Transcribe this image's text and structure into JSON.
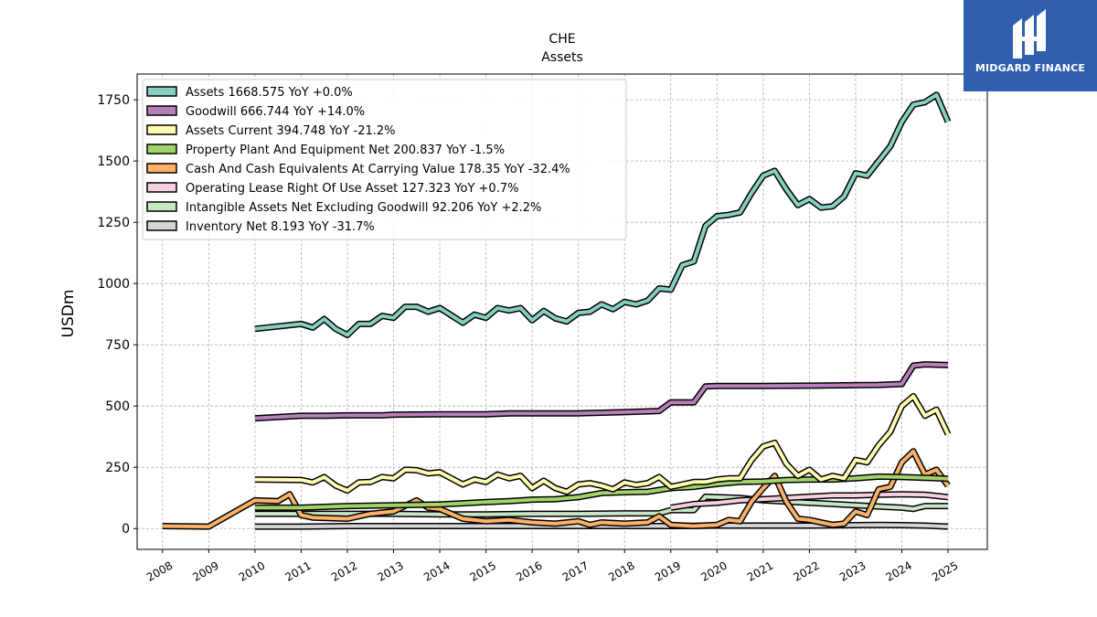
{
  "brand": {
    "name": "MIDGARD FINANCE"
  },
  "chart_data": {
    "type": "line",
    "title": "CHE",
    "subtitle": "Assets",
    "xlabel": "",
    "ylabel": "USDm",
    "xlim": [
      2007.45,
      2025.85
    ],
    "ylim": [
      -85,
      1855
    ],
    "x_ticks": [
      "2008",
      "2009",
      "2010",
      "2011",
      "2012",
      "2013",
      "2014",
      "2015",
      "2016",
      "2017",
      "2018",
      "2019",
      "2020",
      "2021",
      "2022",
      "2023",
      "2024",
      "2025"
    ],
    "y_ticks": [
      0,
      250,
      500,
      750,
      1000,
      1250,
      1500,
      1750
    ],
    "y_tick_labels": [
      "0",
      "250",
      "500",
      "750",
      "1000",
      "1250",
      "1500",
      "1750"
    ],
    "grid": true,
    "legend_position": "top-left",
    "series": [
      {
        "name": "Assets",
        "legend": "Assets  1668.575 YoY +0.0%",
        "color": "#86cfbf",
        "points": [
          [
            2010.0,
            815
          ],
          [
            2011.0,
            835
          ],
          [
            2011.25,
            820
          ],
          [
            2011.5,
            855
          ],
          [
            2011.75,
            815
          ],
          [
            2012.0,
            790
          ],
          [
            2012.25,
            835
          ],
          [
            2012.5,
            835
          ],
          [
            2012.75,
            868
          ],
          [
            2013.0,
            860
          ],
          [
            2013.25,
            905
          ],
          [
            2013.5,
            905
          ],
          [
            2013.75,
            885
          ],
          [
            2014.0,
            900
          ],
          [
            2014.25,
            870
          ],
          [
            2014.5,
            840
          ],
          [
            2014.75,
            873
          ],
          [
            2015.0,
            860
          ],
          [
            2015.25,
            900
          ],
          [
            2015.5,
            890
          ],
          [
            2015.75,
            900
          ],
          [
            2016.0,
            850
          ],
          [
            2016.25,
            888
          ],
          [
            2016.5,
            858
          ],
          [
            2016.75,
            845
          ],
          [
            2017.0,
            880
          ],
          [
            2017.25,
            885
          ],
          [
            2017.5,
            915
          ],
          [
            2017.75,
            895
          ],
          [
            2018.0,
            925
          ],
          [
            2018.25,
            915
          ],
          [
            2018.5,
            930
          ],
          [
            2018.75,
            980
          ],
          [
            2019.0,
            975
          ],
          [
            2019.25,
            1075
          ],
          [
            2019.5,
            1090
          ],
          [
            2019.75,
            1235
          ],
          [
            2020.0,
            1275
          ],
          [
            2020.25,
            1280
          ],
          [
            2020.5,
            1290
          ],
          [
            2020.75,
            1370
          ],
          [
            2021.0,
            1440
          ],
          [
            2021.25,
            1460
          ],
          [
            2021.5,
            1385
          ],
          [
            2021.75,
            1320
          ],
          [
            2022.0,
            1345
          ],
          [
            2022.25,
            1310
          ],
          [
            2022.5,
            1315
          ],
          [
            2022.75,
            1355
          ],
          [
            2023.0,
            1450
          ],
          [
            2023.25,
            1440
          ],
          [
            2023.5,
            1500
          ],
          [
            2023.75,
            1560
          ],
          [
            2024.0,
            1660
          ],
          [
            2024.25,
            1730
          ],
          [
            2024.5,
            1740
          ],
          [
            2024.75,
            1770
          ],
          [
            2025.0,
            1660
          ]
        ]
      },
      {
        "name": "Goodwill",
        "legend": "Goodwill  666.744 YoY +14.0%",
        "color": "#b57fba",
        "points": [
          [
            2010.0,
            450
          ],
          [
            2011.0,
            460
          ],
          [
            2011.5,
            460
          ],
          [
            2012.0,
            462
          ],
          [
            2012.75,
            462
          ],
          [
            2013.0,
            465
          ],
          [
            2014.0,
            466
          ],
          [
            2015.0,
            466
          ],
          [
            2015.5,
            470
          ],
          [
            2016.0,
            470
          ],
          [
            2017.0,
            470
          ],
          [
            2018.0,
            475
          ],
          [
            2018.75,
            480
          ],
          [
            2019.0,
            515
          ],
          [
            2019.5,
            515
          ],
          [
            2019.75,
            580
          ],
          [
            2020.0,
            582
          ],
          [
            2021.0,
            582
          ],
          [
            2022.0,
            583
          ],
          [
            2023.0,
            585
          ],
          [
            2023.5,
            586
          ],
          [
            2024.0,
            590
          ],
          [
            2024.25,
            665
          ],
          [
            2024.5,
            670
          ],
          [
            2025.0,
            667
          ]
        ]
      },
      {
        "name": "Assets Current",
        "legend": "Assets Current  394.748 YoY -21.2%",
        "color": "#fdfab1",
        "points": [
          [
            2010.0,
            200
          ],
          [
            2011.0,
            198
          ],
          [
            2011.25,
            188
          ],
          [
            2011.5,
            210
          ],
          [
            2011.75,
            175
          ],
          [
            2012.0,
            155
          ],
          [
            2012.25,
            188
          ],
          [
            2012.5,
            190
          ],
          [
            2012.75,
            210
          ],
          [
            2013.0,
            205
          ],
          [
            2013.25,
            240
          ],
          [
            2013.5,
            238
          ],
          [
            2013.75,
            225
          ],
          [
            2014.0,
            230
          ],
          [
            2014.25,
            205
          ],
          [
            2014.5,
            180
          ],
          [
            2014.75,
            200
          ],
          [
            2015.0,
            190
          ],
          [
            2015.25,
            220
          ],
          [
            2015.5,
            205
          ],
          [
            2015.75,
            215
          ],
          [
            2016.0,
            165
          ],
          [
            2016.25,
            195
          ],
          [
            2016.5,
            165
          ],
          [
            2016.75,
            150
          ],
          [
            2017.0,
            180
          ],
          [
            2017.25,
            185
          ],
          [
            2017.5,
            175
          ],
          [
            2017.75,
            160
          ],
          [
            2018.0,
            188
          ],
          [
            2018.25,
            178
          ],
          [
            2018.5,
            185
          ],
          [
            2018.75,
            210
          ],
          [
            2019.0,
            170
          ],
          [
            2019.25,
            180
          ],
          [
            2019.5,
            190
          ],
          [
            2019.75,
            190
          ],
          [
            2020.0,
            200
          ],
          [
            2020.25,
            205
          ],
          [
            2020.5,
            205
          ],
          [
            2020.75,
            280
          ],
          [
            2021.0,
            335
          ],
          [
            2021.25,
            350
          ],
          [
            2021.5,
            265
          ],
          [
            2021.75,
            215
          ],
          [
            2022.0,
            240
          ],
          [
            2022.25,
            200
          ],
          [
            2022.5,
            215
          ],
          [
            2022.75,
            205
          ],
          [
            2023.0,
            280
          ],
          [
            2023.25,
            270
          ],
          [
            2023.5,
            340
          ],
          [
            2023.75,
            395
          ],
          [
            2024.0,
            500
          ],
          [
            2024.25,
            540
          ],
          [
            2024.5,
            460
          ],
          [
            2024.75,
            485
          ],
          [
            2025.0,
            385
          ]
        ]
      },
      {
        "name": "Property Plant And Equipment Net",
        "legend": "Property Plant And Equipment Net  200.837 YoY -1.5%",
        "color": "#a2d36b",
        "points": [
          [
            2010.0,
            85
          ],
          [
            2011.0,
            85
          ],
          [
            2012.0,
            92
          ],
          [
            2013.0,
            95
          ],
          [
            2014.0,
            98
          ],
          [
            2015.0,
            108
          ],
          [
            2015.5,
            112
          ],
          [
            2016.0,
            118
          ],
          [
            2016.5,
            120
          ],
          [
            2017.0,
            128
          ],
          [
            2017.5,
            145
          ],
          [
            2018.0,
            148
          ],
          [
            2018.5,
            150
          ],
          [
            2019.0,
            165
          ],
          [
            2019.5,
            170
          ],
          [
            2020.0,
            182
          ],
          [
            2020.5,
            190
          ],
          [
            2021.0,
            192
          ],
          [
            2021.5,
            198
          ],
          [
            2022.0,
            200
          ],
          [
            2022.5,
            200
          ],
          [
            2023.0,
            205
          ],
          [
            2023.5,
            212
          ],
          [
            2024.0,
            210
          ],
          [
            2024.5,
            207
          ],
          [
            2025.0,
            203
          ]
        ]
      },
      {
        "name": "Cash And Cash Equivalents At Carrying Value",
        "legend": "Cash And Cash Equivalents At Carrying Value  178.35 YoY -32.4%",
        "color": "#fcb168",
        "points": [
          [
            2008.0,
            10
          ],
          [
            2009.0,
            8
          ],
          [
            2010.0,
            115
          ],
          [
            2010.5,
            112
          ],
          [
            2010.75,
            140
          ],
          [
            2011.0,
            55
          ],
          [
            2011.25,
            45
          ],
          [
            2012.0,
            40
          ],
          [
            2012.5,
            60
          ],
          [
            2013.0,
            70
          ],
          [
            2013.5,
            115
          ],
          [
            2013.75,
            85
          ],
          [
            2014.0,
            80
          ],
          [
            2014.5,
            40
          ],
          [
            2015.0,
            30
          ],
          [
            2015.5,
            35
          ],
          [
            2016.0,
            25
          ],
          [
            2016.5,
            20
          ],
          [
            2017.0,
            30
          ],
          [
            2017.25,
            15
          ],
          [
            2017.5,
            25
          ],
          [
            2018.0,
            20
          ],
          [
            2018.5,
            25
          ],
          [
            2018.75,
            50
          ],
          [
            2019.0,
            15
          ],
          [
            2019.5,
            10
          ],
          [
            2020.0,
            15
          ],
          [
            2020.25,
            35
          ],
          [
            2020.5,
            30
          ],
          [
            2020.75,
            110
          ],
          [
            2021.0,
            165
          ],
          [
            2021.25,
            215
          ],
          [
            2021.5,
            110
          ],
          [
            2021.75,
            40
          ],
          [
            2022.0,
            35
          ],
          [
            2022.5,
            15
          ],
          [
            2022.75,
            20
          ],
          [
            2023.0,
            70
          ],
          [
            2023.25,
            55
          ],
          [
            2023.5,
            160
          ],
          [
            2023.75,
            170
          ],
          [
            2024.0,
            270
          ],
          [
            2024.25,
            315
          ],
          [
            2024.5,
            220
          ],
          [
            2024.75,
            240
          ],
          [
            2025.0,
            175
          ]
        ]
      },
      {
        "name": "Operating Lease Right Of Use Asset",
        "legend": "Operating Lease Right Of Use Asset  127.323 YoY +0.7%",
        "color": "#f6cfe0",
        "points": [
          [
            2019.0,
            85
          ],
          [
            2019.5,
            100
          ],
          [
            2020.0,
            105
          ],
          [
            2020.5,
            115
          ],
          [
            2021.0,
            120
          ],
          [
            2021.5,
            125
          ],
          [
            2022.0,
            130
          ],
          [
            2022.5,
            135
          ],
          [
            2023.0,
            135
          ],
          [
            2023.5,
            138
          ],
          [
            2024.0,
            140
          ],
          [
            2024.5,
            138
          ],
          [
            2025.0,
            128
          ]
        ]
      },
      {
        "name": "Intangible Assets Net Excluding Goodwill",
        "legend": "Intangible Assets Net Excluding Goodwill  92.206 YoY +2.2%",
        "color": "#c8e6c3",
        "points": [
          [
            2010.0,
            60
          ],
          [
            2011.0,
            60
          ],
          [
            2012.0,
            60
          ],
          [
            2013.0,
            60
          ],
          [
            2014.0,
            58
          ],
          [
            2015.0,
            58
          ],
          [
            2016.0,
            60
          ],
          [
            2017.0,
            60
          ],
          [
            2018.0,
            62
          ],
          [
            2018.75,
            62
          ],
          [
            2019.0,
            75
          ],
          [
            2019.5,
            75
          ],
          [
            2019.75,
            130
          ],
          [
            2020.5,
            125
          ],
          [
            2021.0,
            115
          ],
          [
            2021.5,
            110
          ],
          [
            2022.0,
            105
          ],
          [
            2022.5,
            100
          ],
          [
            2023.0,
            95
          ],
          [
            2023.5,
            90
          ],
          [
            2024.0,
            85
          ],
          [
            2024.25,
            80
          ],
          [
            2024.5,
            92
          ],
          [
            2025.0,
            92
          ]
        ]
      },
      {
        "name": "Inventory Net",
        "legend": "Inventory Net  8.193 YoY -31.7%",
        "color": "#d4d4d4",
        "points": [
          [
            2010.0,
            8
          ],
          [
            2011.0,
            8
          ],
          [
            2012.0,
            10
          ],
          [
            2013.0,
            10
          ],
          [
            2014.0,
            10
          ],
          [
            2015.0,
            10
          ],
          [
            2016.0,
            10
          ],
          [
            2017.0,
            10
          ],
          [
            2018.0,
            10
          ],
          [
            2019.0,
            10
          ],
          [
            2020.0,
            12
          ],
          [
            2021.0,
            12
          ],
          [
            2022.0,
            12
          ],
          [
            2023.0,
            14
          ],
          [
            2023.5,
            15
          ],
          [
            2024.0,
            14
          ],
          [
            2024.5,
            12
          ],
          [
            2025.0,
            8
          ]
        ]
      }
    ]
  }
}
